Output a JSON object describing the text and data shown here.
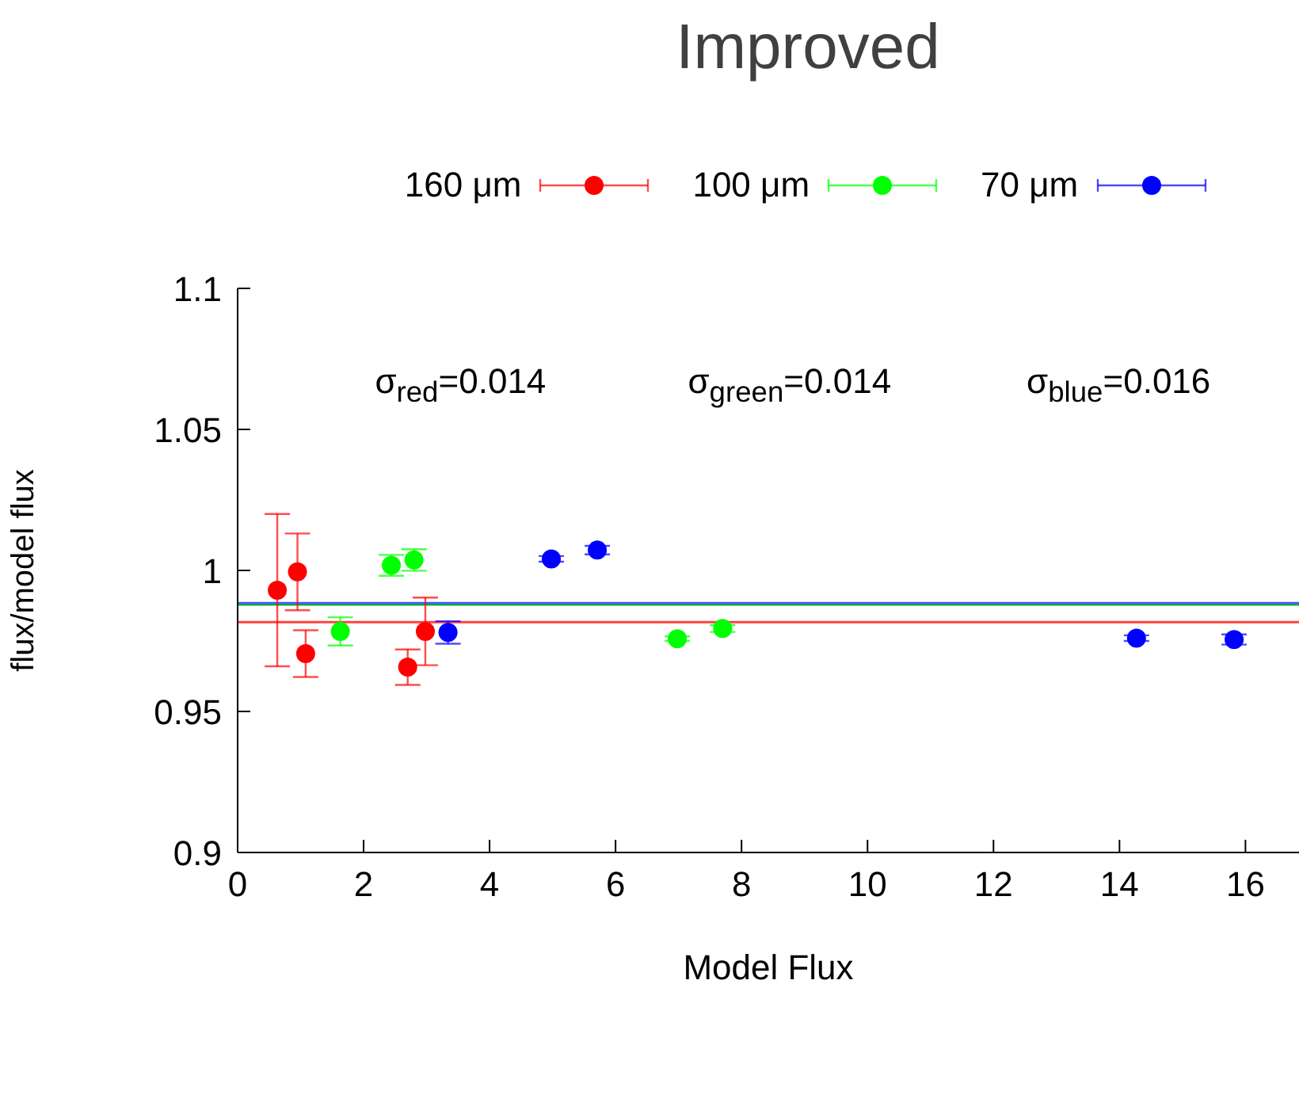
{
  "chart_data": {
    "type": "scatter",
    "title": "Improved",
    "xlabel": "Model Flux",
    "ylabel": "flux/model flux",
    "xlim": [
      0,
      16.85
    ],
    "xticks": [
      0,
      2,
      4,
      6,
      8,
      10,
      12,
      14,
      16
    ],
    "ylim": [
      0.9,
      1.1
    ],
    "yticks": [
      0.9,
      0.95,
      1,
      1.05,
      1.1
    ],
    "legend": "top",
    "marker": "circle",
    "series": [
      {
        "name": "160 μm",
        "color": "#ff0000",
        "x": [
          0.63,
          0.95,
          1.08,
          2.7,
          2.98
        ],
        "values": [
          0.993,
          0.9995,
          0.9705,
          0.9657,
          0.9784
        ],
        "errors": [
          0.027,
          0.0136,
          0.0083,
          0.0063,
          0.012
        ]
      },
      {
        "name": "100 μm",
        "color": "#00ff00",
        "x": [
          1.63,
          2.44,
          2.8,
          6.98,
          7.7
        ],
        "values": [
          0.9784,
          1.0018,
          1.0037,
          0.9758,
          0.9794
        ],
        "errors": [
          0.005,
          0.0037,
          0.0038,
          0.0008,
          0.0012
        ]
      },
      {
        "name": "70 μm",
        "color": "#0000ff",
        "x": [
          3.34,
          4.98,
          5.71,
          14.27,
          15.82
        ],
        "values": [
          0.978,
          1.0041,
          1.0072,
          0.976,
          0.9755
        ],
        "errors": [
          0.004,
          0.001,
          0.0015,
          0.001,
          0.0018
        ]
      }
    ],
    "ref_lines": [
      {
        "axis": "y",
        "value": 0.9817,
        "color": "#ff4040"
      },
      {
        "axis": "y",
        "value": 0.9879,
        "color": "#00c000"
      },
      {
        "axis": "y",
        "value": 0.9884,
        "color": "#4060ff"
      }
    ],
    "annotations": [
      "σ$_{red}$=0.014",
      "σ$_{green}$=0.014",
      "σ$_{blue}$=0.016"
    ]
  }
}
